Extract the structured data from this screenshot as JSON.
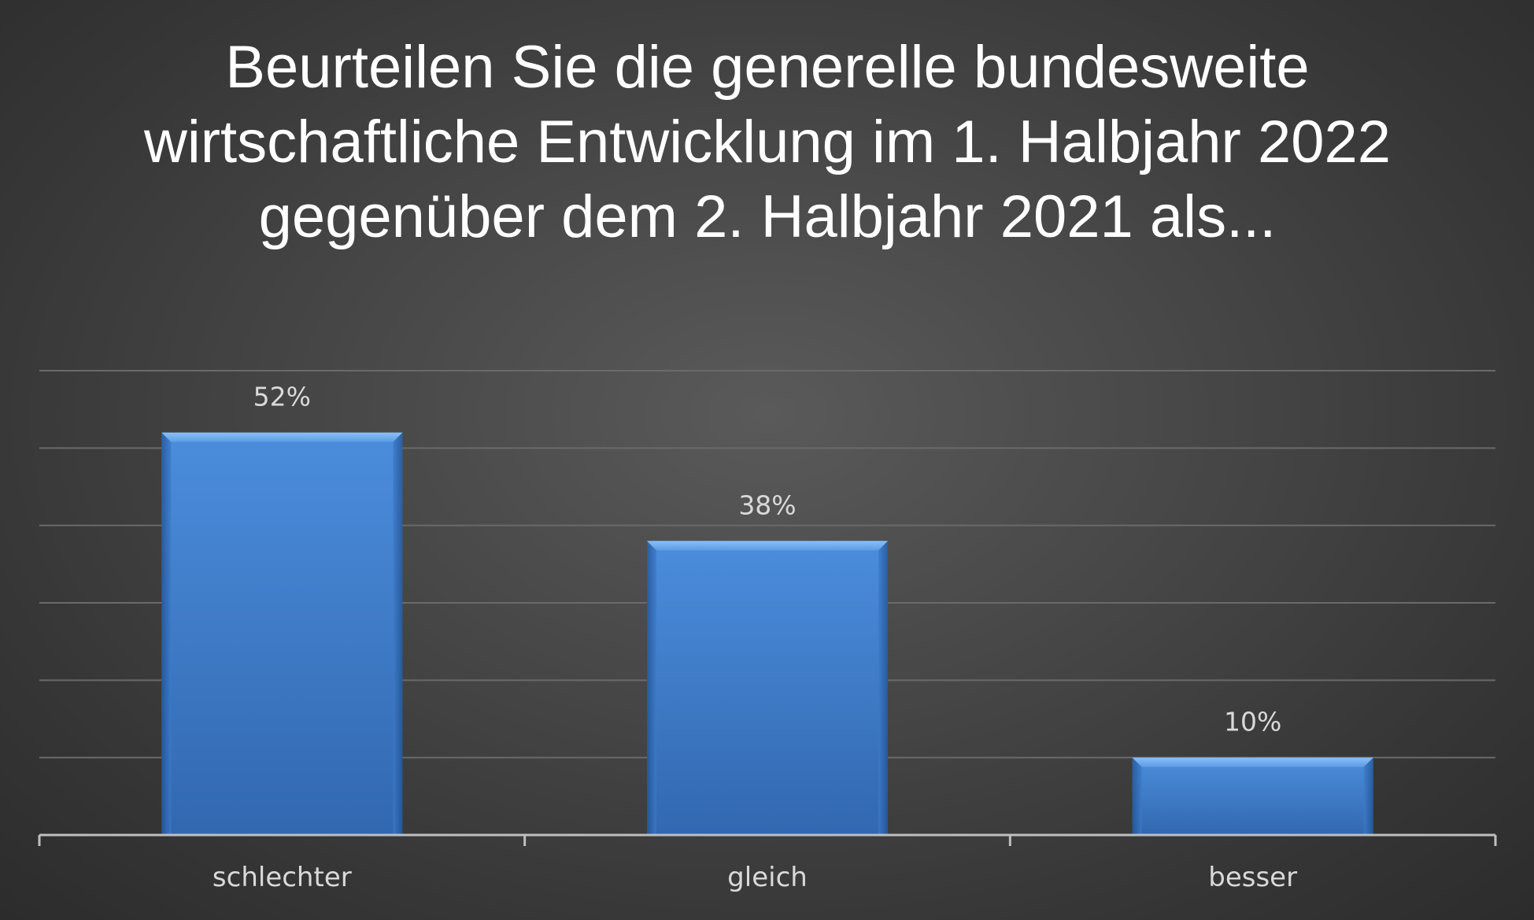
{
  "chart_data": {
    "type": "bar",
    "title": "Beurteilen Sie die generelle bundesweite wirtschaftliche Entwicklung im 1. Halbjahr 2022 gegenüber dem 2. Halbjahr 2021 als...",
    "categories": [
      "schlechter",
      "gleich",
      "besser"
    ],
    "values": [
      52,
      38,
      10
    ],
    "data_labels": [
      "52%",
      "38%",
      "10%"
    ],
    "xlabel": "",
    "ylabel": "",
    "ylim": [
      0,
      60
    ],
    "grid": true,
    "legend": "none",
    "colors": {
      "bar_top": "#5a9ae6",
      "bar_mid": "#3f7fd0",
      "bar_bottom": "#2f63a8",
      "gridline": "#6a6a6a",
      "axis": "#bfbfbf",
      "label": "#d9d9d9",
      "title": "#ffffff"
    }
  }
}
